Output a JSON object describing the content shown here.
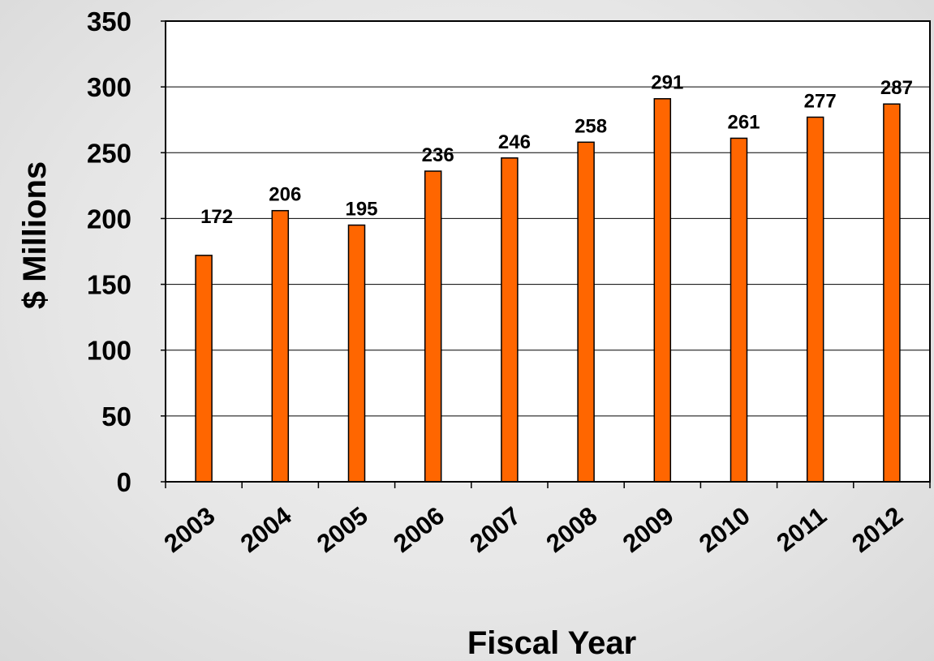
{
  "chart_data": {
    "type": "bar",
    "categories": [
      "2003",
      "2004",
      "2005",
      "2006",
      "2007",
      "2008",
      "2009",
      "2010",
      "2011",
      "2012"
    ],
    "values": [
      172,
      206,
      195,
      236,
      246,
      258,
      291,
      261,
      277,
      287
    ],
    "data_labels": [
      "172",
      "206",
      "195",
      "236",
      "246",
      "258",
      "291",
      "261",
      "277",
      "287"
    ],
    "title": "",
    "xlabel": "Fiscal Year",
    "ylabel": "$ Millions",
    "ylim": [
      0,
      350
    ],
    "yticks": [
      "0",
      "50",
      "100",
      "150",
      "200",
      "250",
      "300",
      "350"
    ],
    "grid": true,
    "legend": "none",
    "bar_color": "#ff6600",
    "bar_outline_color": "#000000"
  }
}
